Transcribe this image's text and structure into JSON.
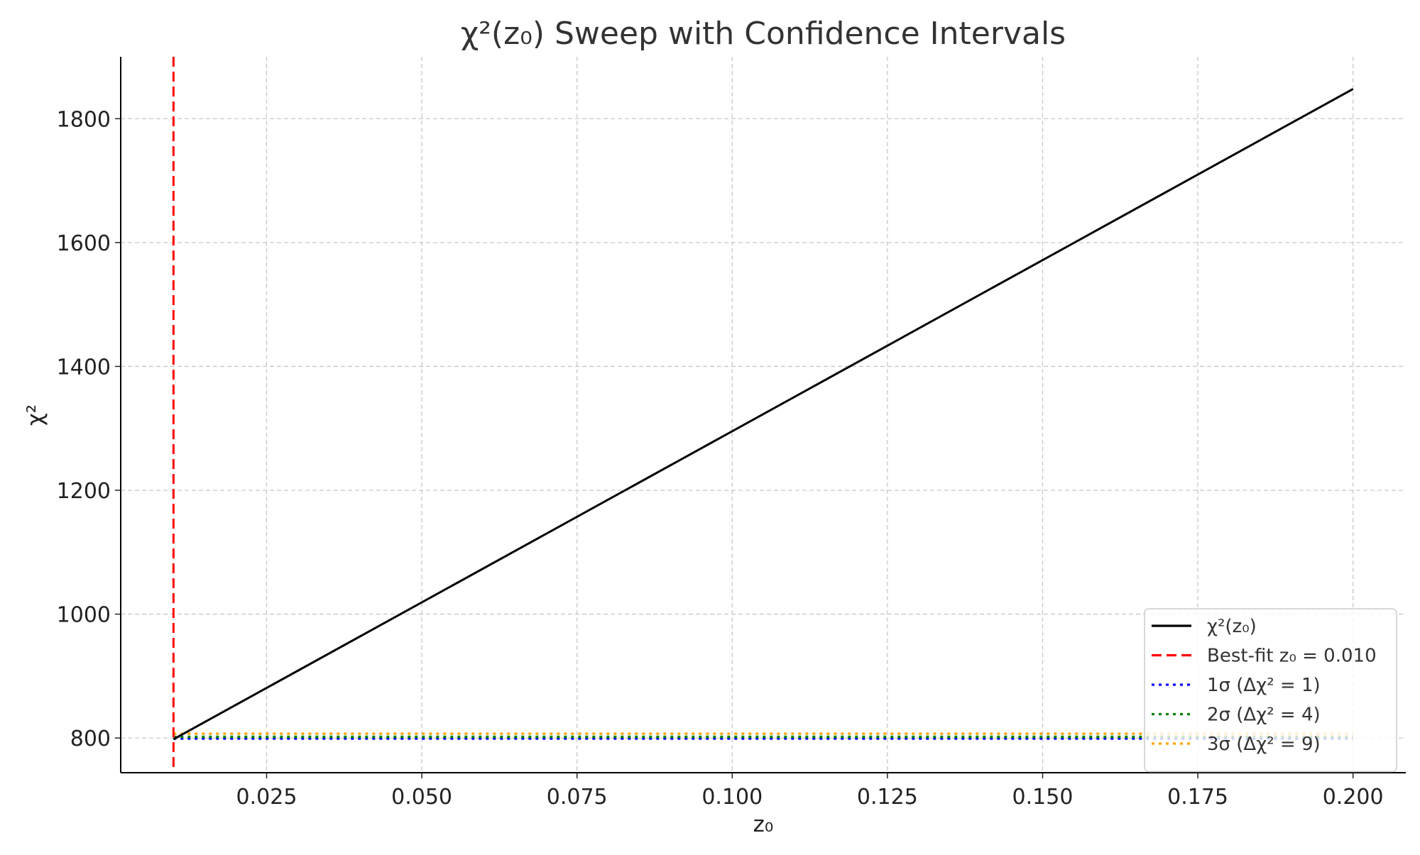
{
  "chart_data": {
    "type": "line",
    "title": "χ²(z₀) Sweep with Confidence Intervals",
    "xlabel": "z₀",
    "ylabel": "χ²",
    "xlim": [
      0.0015,
      0.2085
    ],
    "ylim": [
      744,
      1900
    ],
    "xticks": [
      "0.025",
      "0.050",
      "0.075",
      "0.100",
      "0.125",
      "0.150",
      "0.175",
      "0.200"
    ],
    "yticks": [
      "800",
      "1000",
      "1200",
      "1400",
      "1600",
      "1800"
    ],
    "grid": true,
    "legend_position": "lower-right",
    "series": [
      {
        "name": "χ²(z₀)",
        "x": [
          0.01,
          0.2
        ],
        "y": [
          798,
          1848
        ],
        "color": "#000000",
        "style": "solid"
      }
    ],
    "vlines": [
      {
        "name": "Best-fit z₀ = 0.010",
        "x": 0.01,
        "color": "#ff0000",
        "style": "dashed"
      }
    ],
    "hlines": [
      {
        "name": "1σ (Δχ² = 1)",
        "y": 799,
        "color": "#0000ff",
        "style": "dotted"
      },
      {
        "name": "2σ (Δχ² = 4)",
        "y": 802,
        "color": "#008000",
        "style": "dotted"
      },
      {
        "name": "3σ (Δχ² = 9)",
        "y": 807,
        "color": "#ffa500",
        "style": "dotted"
      }
    ]
  }
}
